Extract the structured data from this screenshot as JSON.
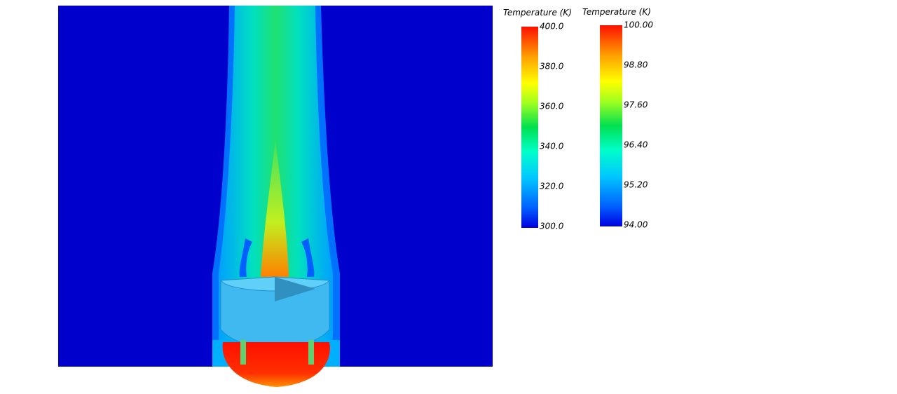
{
  "colorbars": [
    {
      "title": "Temperature (K)",
      "ticks": [
        "400.0",
        "380.0",
        "360.0",
        "340.0",
        "320.0",
        "300.0"
      ]
    },
    {
      "title": "Temperature (K)",
      "ticks": [
        "100.00",
        "98.80",
        "97.60",
        "96.40",
        "95.20",
        "94.00"
      ]
    }
  ]
}
